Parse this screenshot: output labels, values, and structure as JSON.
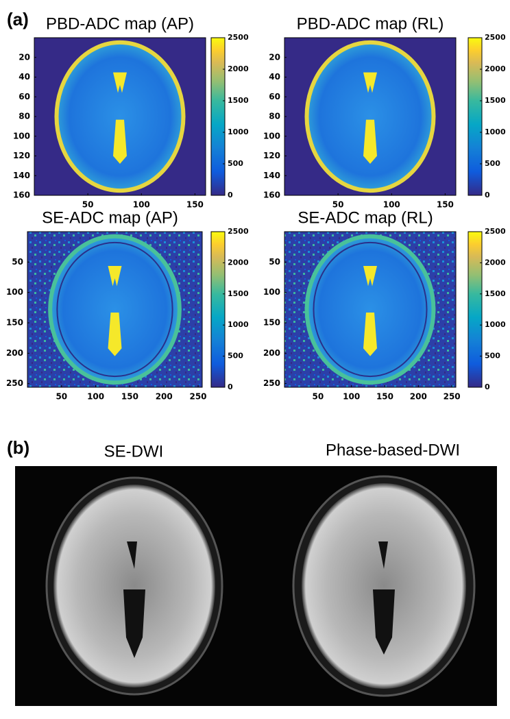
{
  "panel_a": {
    "label": "(a)",
    "maps": [
      {
        "title": "PBD-ADC map (AP)",
        "xlim": [
          0,
          160
        ],
        "ylim": [
          0,
          160
        ],
        "xticks": [
          50,
          100,
          150
        ],
        "yticks": [
          20,
          40,
          60,
          80,
          100,
          120,
          140,
          160
        ],
        "clim": [
          0,
          2500
        ],
        "colorbar_ticks": [
          0,
          500,
          1000,
          1500,
          2000,
          2500
        ]
      },
      {
        "title": "PBD-ADC map (RL)",
        "xlim": [
          0,
          160
        ],
        "ylim": [
          0,
          160
        ],
        "xticks": [
          50,
          100,
          150
        ],
        "yticks": [
          20,
          40,
          60,
          80,
          100,
          120,
          140,
          160
        ],
        "clim": [
          0,
          2500
        ],
        "colorbar_ticks": [
          0,
          500,
          1000,
          1500,
          2000,
          2500
        ]
      },
      {
        "title": "SE-ADC map (AP)",
        "xlim": [
          0,
          256
        ],
        "ylim": [
          0,
          256
        ],
        "xticks": [
          50,
          100,
          150,
          200,
          250
        ],
        "yticks": [
          50,
          100,
          150,
          200,
          250
        ],
        "clim": [
          0,
          2500
        ],
        "colorbar_ticks": [
          0,
          500,
          1000,
          1500,
          2000,
          2500
        ]
      },
      {
        "title": "SE-ADC map (RL)",
        "xlim": [
          0,
          256
        ],
        "ylim": [
          0,
          256
        ],
        "xticks": [
          50,
          100,
          150,
          200,
          250
        ],
        "yticks": [
          50,
          100,
          150,
          200,
          250
        ],
        "clim": [
          0,
          2500
        ],
        "colorbar_ticks": [
          0,
          500,
          1000,
          1500,
          2000,
          2500
        ]
      }
    ]
  },
  "panel_b": {
    "label": "(b)",
    "images": [
      {
        "title": "SE-DWI"
      },
      {
        "title": "Phase-based-DWI"
      }
    ]
  }
}
